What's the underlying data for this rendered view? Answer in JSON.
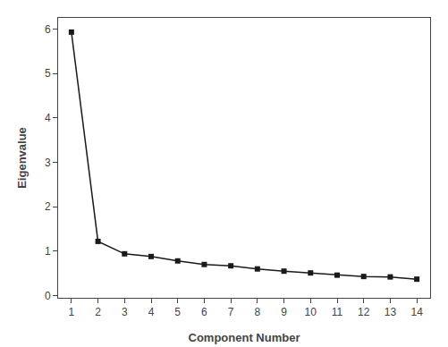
{
  "chart_data": {
    "type": "line",
    "x": [
      1,
      2,
      3,
      4,
      5,
      6,
      7,
      8,
      9,
      10,
      11,
      12,
      13,
      14
    ],
    "values": [
      5.93,
      1.22,
      0.94,
      0.88,
      0.78,
      0.7,
      0.67,
      0.6,
      0.55,
      0.51,
      0.46,
      0.43,
      0.42,
      0.37
    ],
    "color": "#1a1a1a",
    "marker": "square",
    "xlabel": "Component Number",
    "ylabel": "Eigenvalue",
    "xlim": [
      0.5,
      14.5
    ],
    "ylim": [
      -0.05,
      6.25
    ],
    "xticks": [
      1,
      2,
      3,
      4,
      5,
      6,
      7,
      8,
      9,
      10,
      11,
      12,
      13,
      14
    ],
    "yticks": [
      0,
      1,
      2,
      3,
      4,
      5,
      6
    ],
    "grid": false
  }
}
